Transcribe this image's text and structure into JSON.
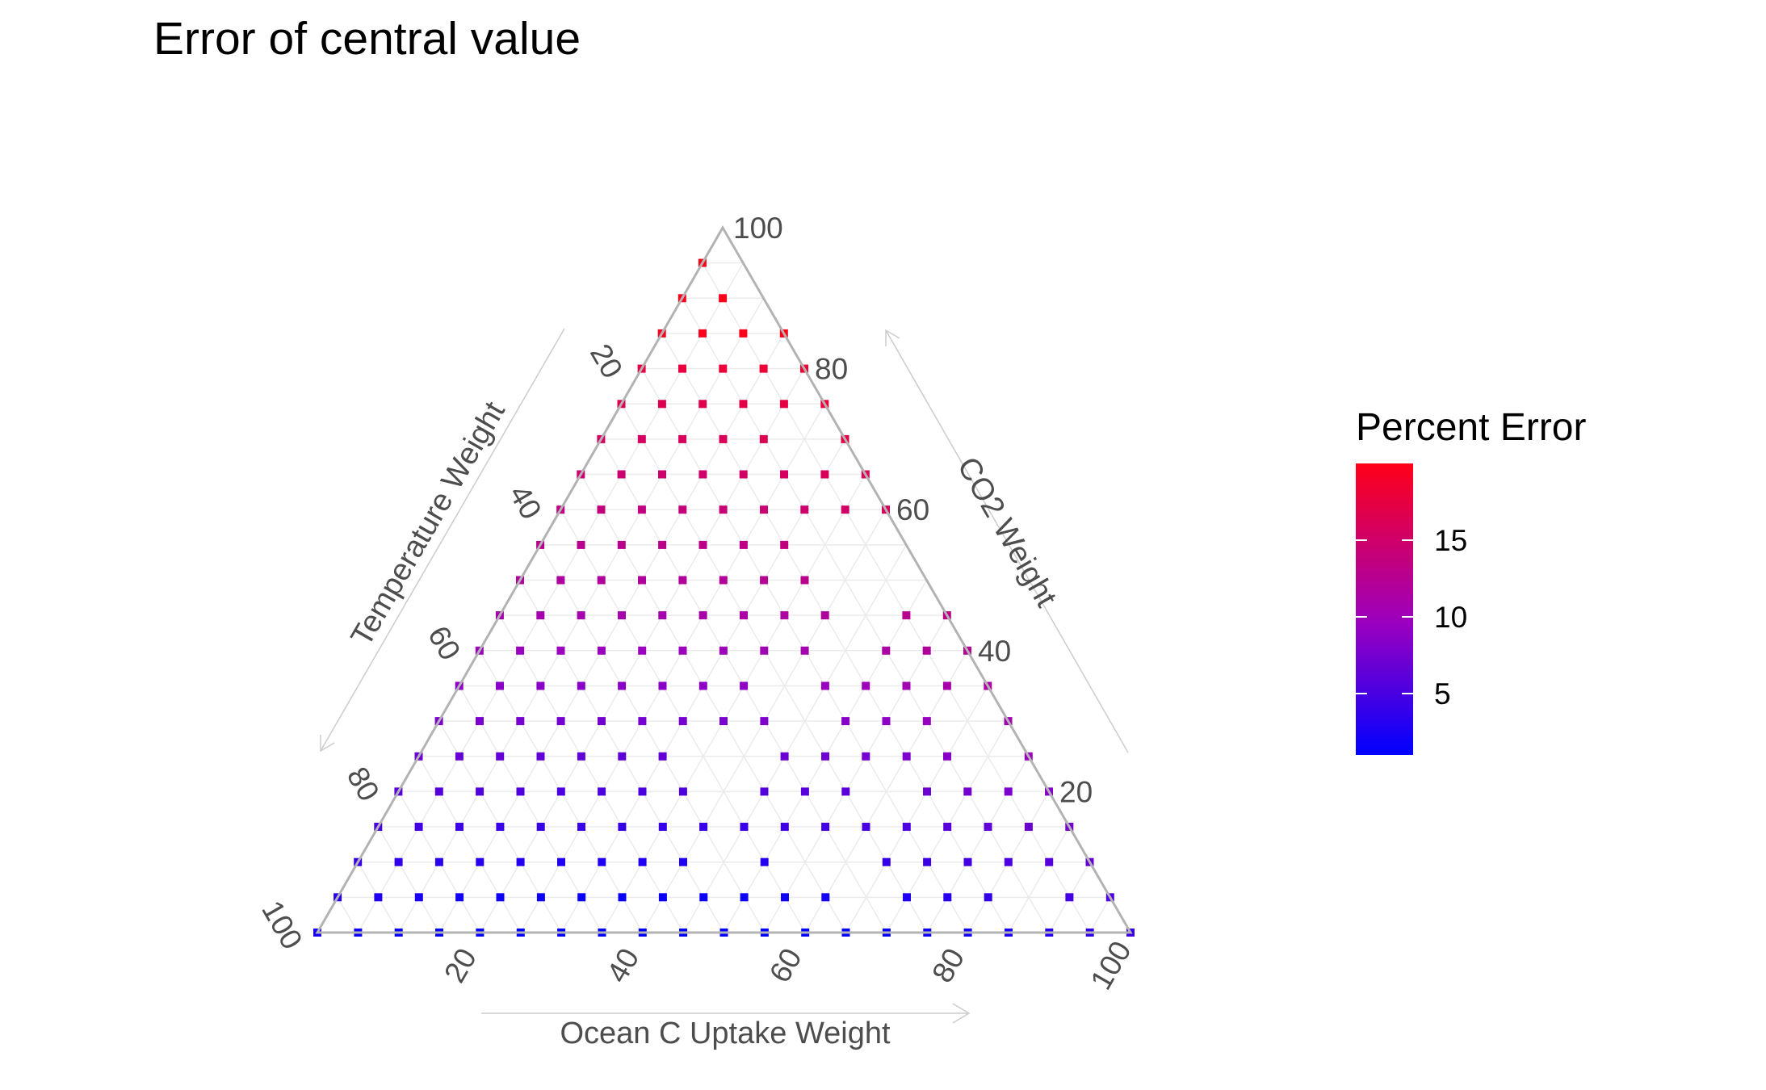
{
  "chart_data": {
    "type": "ternary_scatter",
    "title": "Error of central value",
    "axes": {
      "bottom": {
        "label": "Ocean C Uptake Weight",
        "ticks": [
          20,
          40,
          60,
          80,
          100
        ]
      },
      "left": {
        "label": "Temperature Weight",
        "ticks": [
          20,
          40,
          60,
          80,
          100
        ]
      },
      "right": {
        "label": "CO2 Weight",
        "ticks": [
          20,
          40,
          60,
          80,
          100
        ]
      }
    },
    "grid_step": 5,
    "grid": true,
    "point_spacing": 5,
    "color_scale": {
      "title": "Percent Error",
      "ticks": [
        5,
        10,
        15
      ],
      "min": 1,
      "max": 20,
      "low_color": "#0000ff",
      "mid_color": "#9a00c0",
      "high_color": "#ff0019"
    },
    "legend_placement": "right",
    "missing_points_note": "a few grid points are absent",
    "missing_points": [
      [
        40,
        35,
        25
      ],
      [
        40,
        40,
        20
      ],
      [
        35,
        40,
        25
      ],
      [
        30,
        60,
        10
      ],
      [
        30,
        65,
        5
      ],
      [
        25,
        40,
        35
      ],
      [
        25,
        45,
        30
      ],
      [
        20,
        60,
        20
      ],
      [
        15,
        45,
        40
      ],
      [
        10,
        35,
        55
      ],
      [
        10,
        40,
        50
      ],
      [
        10,
        45,
        45
      ],
      [
        5,
        40,
        55
      ],
      [
        5,
        45,
        50
      ],
      [
        5,
        65,
        30
      ],
      [
        5,
        70,
        25
      ],
      [
        5,
        25,
        70
      ],
      [
        0,
        5,
        95
      ],
      [
        0,
        10,
        90
      ],
      [
        0,
        45,
        55
      ],
      [
        0,
        50,
        50
      ],
      [
        10,
        85,
        5
      ],
      [
        45,
        45,
        10
      ],
      [
        35,
        55,
        10
      ]
    ]
  }
}
